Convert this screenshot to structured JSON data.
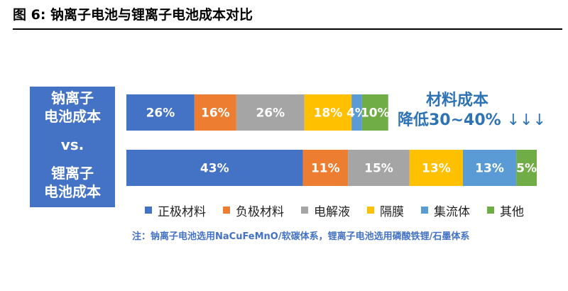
{
  "figure": {
    "title": "图 6:  钠离子电池与锂离子电池成本对比"
  },
  "left_panel": {
    "lines": [
      "钠离子",
      "电池成本",
      "vs.",
      "锂离子",
      "电池成本"
    ]
  },
  "side_note": {
    "line1": "材料成本",
    "line2": "降低30~40%",
    "arrows": "↓↓↓"
  },
  "footnote": "注：钠离子电池选用NaCuFeMnO/软碳体系，锂离子电池选用磷酸铁锂/石墨体系",
  "chart_data": {
    "type": "bar",
    "orientation": "horizontal",
    "stacked": true,
    "normalized": "percent",
    "categories": [
      "钠离子电池成本",
      "锂离子电池成本"
    ],
    "series": [
      {
        "name": "正极材料",
        "color": "#4472c4",
        "values": [
          26,
          43
        ],
        "labels": [
          "26%",
          "43%"
        ]
      },
      {
        "name": "负极材料",
        "color": "#ed7d31",
        "values": [
          16,
          11
        ],
        "labels": [
          "16%",
          "11%"
        ]
      },
      {
        "name": "电解液",
        "color": "#a5a5a5",
        "values": [
          26,
          15
        ],
        "labels": [
          "26%",
          "15%"
        ]
      },
      {
        "name": "隔膜",
        "color": "#ffc000",
        "values": [
          18,
          13
        ],
        "labels": [
          "18%",
          "13%"
        ]
      },
      {
        "name": "集流体",
        "color": "#5b9bd5",
        "values": [
          4,
          13
        ],
        "labels": [
          "4%",
          "13%"
        ]
      },
      {
        "name": "其他",
        "color": "#70ad47",
        "values": [
          10,
          5
        ],
        "labels": [
          "10%",
          "5%"
        ]
      }
    ],
    "legend_position": "bottom",
    "grid": false
  }
}
